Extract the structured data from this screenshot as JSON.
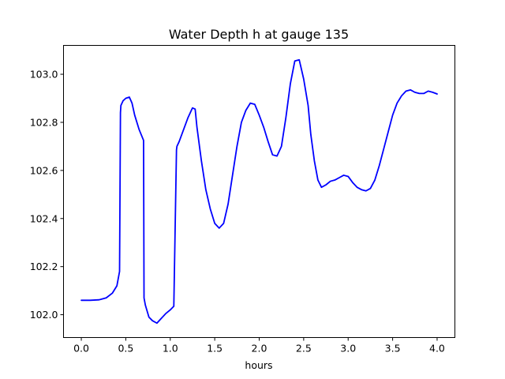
{
  "chart_data": {
    "type": "line",
    "title": "Water Depth h at gauge 135",
    "xlabel": "hours",
    "ylabel": "",
    "xlim": [
      -0.2,
      4.2
    ],
    "ylim": [
      101.905,
      103.12
    ],
    "xticks": [
      0.0,
      0.5,
      1.0,
      1.5,
      2.0,
      2.5,
      3.0,
      3.5,
      4.0
    ],
    "xtick_labels": [
      "0.0",
      "0.5",
      "1.0",
      "1.5",
      "2.0",
      "2.5",
      "3.0",
      "3.5",
      "4.0"
    ],
    "yticks": [
      102.0,
      102.2,
      102.4,
      102.6,
      102.8,
      103.0
    ],
    "ytick_labels": [
      "102.0",
      "102.2",
      "102.4",
      "102.6",
      "102.8",
      "103.0"
    ],
    "grid": false,
    "series": [
      {
        "color": "#0000ff",
        "x": [
          0.0,
          0.1,
          0.2,
          0.28,
          0.35,
          0.4,
          0.43,
          0.44,
          0.445,
          0.47,
          0.5,
          0.54,
          0.57,
          0.6,
          0.65,
          0.7,
          0.705,
          0.72,
          0.76,
          0.8,
          0.85,
          0.9,
          0.95,
          1.0,
          1.04,
          1.07,
          1.075,
          1.1,
          1.15,
          1.2,
          1.25,
          1.28,
          1.3,
          1.35,
          1.4,
          1.45,
          1.5,
          1.55,
          1.6,
          1.65,
          1.7,
          1.75,
          1.8,
          1.85,
          1.9,
          1.95,
          2.0,
          2.05,
          2.1,
          2.15,
          2.2,
          2.25,
          2.3,
          2.35,
          2.4,
          2.45,
          2.5,
          2.55,
          2.58,
          2.62,
          2.66,
          2.7,
          2.75,
          2.8,
          2.85,
          2.9,
          2.95,
          3.0,
          3.05,
          3.1,
          3.15,
          3.2,
          3.25,
          3.3,
          3.35,
          3.4,
          3.45,
          3.5,
          3.55,
          3.6,
          3.65,
          3.7,
          3.75,
          3.8,
          3.85,
          3.9,
          3.95,
          4.0
        ],
        "y": [
          102.06,
          102.06,
          102.062,
          102.07,
          102.09,
          102.12,
          102.18,
          102.84,
          102.87,
          102.89,
          102.9,
          102.905,
          102.88,
          102.83,
          102.77,
          102.725,
          102.07,
          102.04,
          101.99,
          101.975,
          101.965,
          101.985,
          102.005,
          102.02,
          102.035,
          102.685,
          102.7,
          102.72,
          102.77,
          102.82,
          102.86,
          102.855,
          102.78,
          102.64,
          102.52,
          102.44,
          102.38,
          102.36,
          102.38,
          102.46,
          102.58,
          102.7,
          102.8,
          102.85,
          102.88,
          102.875,
          102.83,
          102.78,
          102.72,
          102.665,
          102.66,
          102.7,
          102.82,
          102.96,
          103.055,
          103.06,
          102.98,
          102.87,
          102.75,
          102.64,
          102.56,
          102.53,
          102.54,
          102.555,
          102.56,
          102.57,
          102.58,
          102.575,
          102.55,
          102.53,
          102.52,
          102.515,
          102.525,
          102.56,
          102.62,
          102.69,
          102.76,
          102.83,
          102.88,
          102.91,
          102.93,
          102.935,
          102.925,
          102.92,
          102.92,
          102.93,
          102.925,
          102.918
        ]
      }
    ]
  }
}
